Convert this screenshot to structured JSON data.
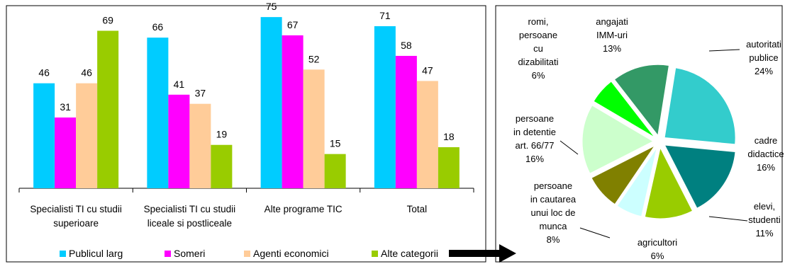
{
  "chart_data": [
    {
      "type": "bar",
      "categories": [
        [
          "Specialisti TI cu studii",
          "superioare"
        ],
        [
          "Specialisti TI cu studii",
          "liceale si postliceale"
        ],
        [
          "Alte programe TIC"
        ],
        [
          "Total"
        ]
      ],
      "series": [
        {
          "name": "Publicul larg",
          "color": "#00ccff",
          "values": [
            46,
            66,
            75,
            71
          ]
        },
        {
          "name": "Someri",
          "color": "#ff00ff",
          "values": [
            31,
            41,
            67,
            58
          ]
        },
        {
          "name": "Agenti economici",
          "color": "#ffcc99",
          "values": [
            46,
            37,
            52,
            47
          ]
        },
        {
          "name": "Alte categorii",
          "color": "#99cc00",
          "values": [
            69,
            19,
            15,
            18
          ]
        }
      ],
      "ylim": [
        0,
        80
      ],
      "grid": false,
      "legend": "bottom"
    },
    {
      "type": "pie",
      "slices": [
        {
          "label": [
            "autoritati",
            "publice"
          ],
          "value": 24,
          "text": "24%",
          "color": "#33cccc"
        },
        {
          "label": [
            "cadre",
            "didactice"
          ],
          "value": 16,
          "text": "16%",
          "color": "#008080"
        },
        {
          "label": [
            "elevi,",
            "studenti"
          ],
          "value": 11,
          "text": "11%",
          "color": "#99cc00"
        },
        {
          "label": [
            "agricultori"
          ],
          "value": 6,
          "text": "6%",
          "color": "#ccffff"
        },
        {
          "label": [
            "persoane",
            "in cautarea",
            "unui loc de",
            "munca"
          ],
          "value": 8,
          "text": "8%",
          "color": "#808000"
        },
        {
          "label": [
            "persoane",
            "in detentie",
            "art. 66/77"
          ],
          "value": 16,
          "text": "16%",
          "color": "#ccffcc"
        },
        {
          "label": [
            "romi,",
            "persoane",
            "cu",
            "dizabilitati"
          ],
          "value": 6,
          "text": "6%",
          "color": "#00ff00"
        },
        {
          "label": [
            "angajati",
            "IMM-uri"
          ],
          "value": 13,
          "text": "13%",
          "color": "#339966"
        }
      ]
    }
  ]
}
